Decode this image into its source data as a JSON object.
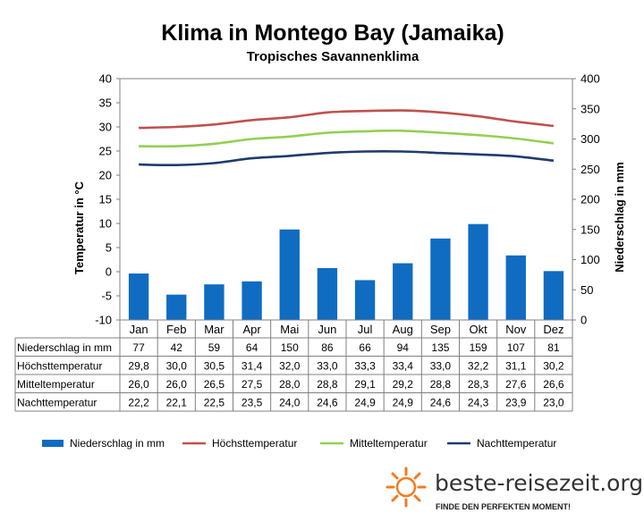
{
  "title": "Klima in Montego Bay (Jamaika)",
  "subtitle": "Tropisches Savannenklima",
  "brand": {
    "name": "beste-reisezeit.org",
    "slogan": "FINDE DEN PERFEKTEN MOMENT!",
    "color": "#f47b20"
  },
  "chart_data": {
    "type": "bar+line",
    "categories": [
      "Jan",
      "Feb",
      "Mar",
      "Apr",
      "Mai",
      "Jun",
      "Jul",
      "Aug",
      "Sep",
      "Okt",
      "Nov",
      "Dez"
    ],
    "ylabel_left": "Temperatur in °C",
    "ylabel_right": "Niederschlag in mm",
    "ylim_left": [
      -10,
      40
    ],
    "ylim_right": [
      0,
      400
    ],
    "yticks_left": [
      -10,
      -5,
      0,
      5,
      10,
      15,
      20,
      25,
      30,
      35,
      40
    ],
    "yticks_right": [
      0,
      50,
      100,
      150,
      200,
      250,
      300,
      350,
      400
    ],
    "grid": false,
    "legend_position": "bottom",
    "bars": {
      "name": "Niederschlag in mm",
      "color": "#0f6cc1",
      "axis": "right",
      "values": [
        77,
        42,
        59,
        64,
        150,
        86,
        66,
        94,
        135,
        159,
        107,
        81
      ]
    },
    "series": [
      {
        "name": "Höchsttemperatur",
        "color": "#c0504d",
        "axis": "left",
        "values": [
          29.8,
          30.0,
          30.5,
          31.4,
          32.0,
          33.0,
          33.3,
          33.4,
          33.0,
          32.2,
          31.1,
          30.2
        ]
      },
      {
        "name": "Mitteltemperatur",
        "color": "#92d050",
        "axis": "left",
        "values": [
          26.0,
          26.0,
          26.5,
          27.5,
          28.0,
          28.8,
          29.1,
          29.2,
          28.8,
          28.3,
          27.6,
          26.6
        ]
      },
      {
        "name": "Nachttemperatur",
        "color": "#1f3b6e",
        "axis": "left",
        "values": [
          22.2,
          22.1,
          22.5,
          23.5,
          24.0,
          24.6,
          24.9,
          24.9,
          24.6,
          24.3,
          23.9,
          23.0
        ]
      }
    ],
    "table": {
      "rows": [
        {
          "label": "Niederschlag in mm",
          "values": [
            "77",
            "42",
            "59",
            "64",
            "150",
            "86",
            "66",
            "94",
            "135",
            "159",
            "107",
            "81"
          ]
        },
        {
          "label": "Höchsttemperatur",
          "values": [
            "29,8",
            "30,0",
            "30,5",
            "31,4",
            "32,0",
            "33,0",
            "33,3",
            "33,4",
            "33,0",
            "32,2",
            "31,1",
            "30,2"
          ]
        },
        {
          "label": "Mitteltemperatur",
          "values": [
            "26,0",
            "26,0",
            "26,5",
            "27,5",
            "28,0",
            "28,8",
            "29,1",
            "29,2",
            "28,8",
            "28,3",
            "27,6",
            "26,6"
          ]
        },
        {
          "label": "Nachttemperatur",
          "values": [
            "22,2",
            "22,1",
            "22,5",
            "23,5",
            "24,0",
            "24,6",
            "24,9",
            "24,9",
            "24,6",
            "24,3",
            "23,9",
            "23,0"
          ]
        }
      ]
    }
  }
}
